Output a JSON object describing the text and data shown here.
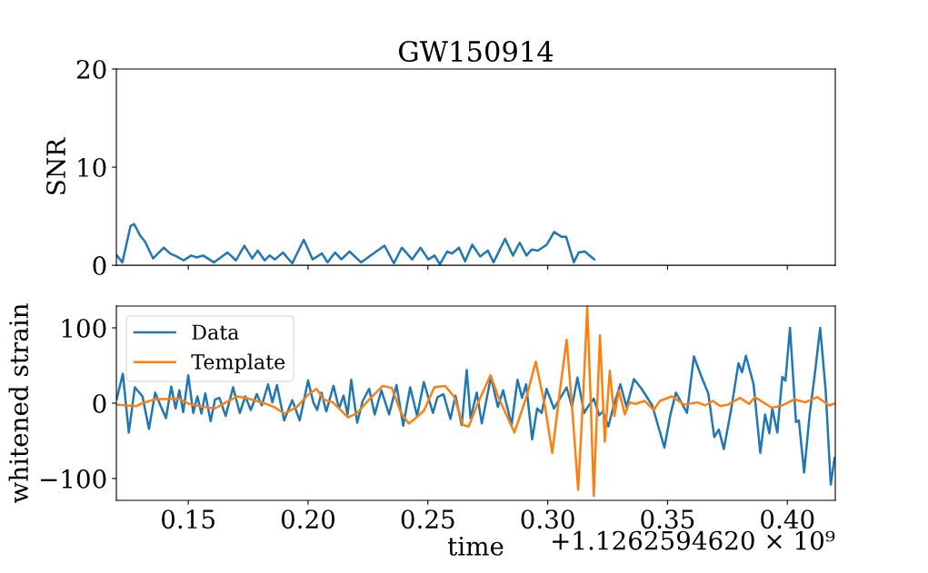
{
  "chart_data": [
    {
      "type": "line",
      "title": "GW150914",
      "ylabel": "SNR",
      "xlim": [
        0.12,
        0.42
      ],
      "xticks": [
        {
          "value": 0.15,
          "label": null
        },
        {
          "value": 0.2,
          "label": null
        },
        {
          "value": 0.25,
          "label": null
        },
        {
          "value": 0.3,
          "label": null
        },
        {
          "value": 0.35,
          "label": null
        },
        {
          "value": 0.4,
          "label": null
        }
      ],
      "ylim": [
        0,
        20
      ],
      "yticks": [
        0,
        10,
        20
      ],
      "tick_labels": "y",
      "grid": false,
      "legend": false,
      "series": [
        {
          "color": "#1f77b4",
          "x": [
            0.1202,
            0.1225,
            0.1259,
            0.1274,
            0.13,
            0.132,
            0.1353,
            0.1398,
            0.1424,
            0.1451,
            0.1481,
            0.1512,
            0.1535,
            0.1562,
            0.1607,
            0.1664,
            0.1699,
            0.1734,
            0.1767,
            0.179,
            0.1819,
            0.1839,
            0.1862,
            0.1895,
            0.1934,
            0.1982,
            0.2019,
            0.2058,
            0.2081,
            0.2113,
            0.2139,
            0.2173,
            0.2221,
            0.2267,
            0.2319,
            0.2358,
            0.2391,
            0.2434,
            0.2469,
            0.2502,
            0.2528,
            0.255,
            0.258,
            0.26,
            0.263,
            0.2655,
            0.2685,
            0.2718,
            0.275,
            0.2774,
            0.2822,
            0.2855,
            0.2883,
            0.2911,
            0.2933,
            0.2959,
            0.2996,
            0.3027,
            0.3057,
            0.3077,
            0.3109,
            0.3129,
            0.3155,
            0.3194
          ],
          "values": [
            1.0,
            0.3,
            4.0,
            4.2,
            3.0,
            2.4,
            0.7,
            1.8,
            1.2,
            0.9,
            0.5,
            1.0,
            0.8,
            1.0,
            0.3,
            1.3,
            0.5,
            2.0,
            0.7,
            1.5,
            0.5,
            1.0,
            0.6,
            1.3,
            0.2,
            2.6,
            0.6,
            1.2,
            0.3,
            1.3,
            0.6,
            1.4,
            0.3,
            1.1,
            2.0,
            0.2,
            1.8,
            0.6,
            1.8,
            0.6,
            1.0,
            0.1,
            1.4,
            1.2,
            1.8,
            0.4,
            2.1,
            0.9,
            1.5,
            0.3,
            2.7,
            1.0,
            2.3,
            1.0,
            1.6,
            1.5,
            2.1,
            3.4,
            2.9,
            2.9,
            0.3,
            1.3,
            1.4,
            0.6
          ]
        }
      ]
    },
    {
      "type": "line",
      "xlabel": "time",
      "ylabel": "whitened strain",
      "annotations": [
        "+1.1262594620 × 10⁹"
      ],
      "xlim": [
        0.12,
        0.42
      ],
      "xticks": [
        {
          "value": 0.15,
          "label": "0.15"
        },
        {
          "value": 0.2,
          "label": "0.20"
        },
        {
          "value": 0.25,
          "label": "0.25"
        },
        {
          "value": 0.3,
          "label": "0.30"
        },
        {
          "value": 0.35,
          "label": "0.35"
        },
        {
          "value": 0.4,
          "label": "0.40"
        }
      ],
      "ylim": [
        -129,
        129
      ],
      "yticks": [
        {
          "value": -100,
          "label": "−100"
        },
        0,
        100
      ],
      "grid": false,
      "legend": "top left",
      "series": [
        {
          "name": "Data",
          "color": "#1f77b4",
          "x": [
            0.1201,
            0.1227,
            0.1252,
            0.1277,
            0.1309,
            0.1336,
            0.1362,
            0.1384,
            0.1407,
            0.1429,
            0.1447,
            0.1463,
            0.1479,
            0.15,
            0.1521,
            0.1538,
            0.1555,
            0.1571,
            0.1593,
            0.1612,
            0.163,
            0.1656,
            0.1687,
            0.1715,
            0.1738,
            0.1761,
            0.1786,
            0.1807,
            0.1833,
            0.1851,
            0.187,
            0.19,
            0.1934,
            0.1965,
            0.2,
            0.2022,
            0.2038,
            0.2056,
            0.2076,
            0.2106,
            0.2129,
            0.2148,
            0.2165,
            0.218,
            0.2205,
            0.2228,
            0.2255,
            0.2278,
            0.2306,
            0.2338,
            0.2369,
            0.2397,
            0.2426,
            0.2455,
            0.2483,
            0.2521,
            0.254,
            0.2565,
            0.2594,
            0.2615,
            0.2641,
            0.2662,
            0.2678,
            0.2704,
            0.2725,
            0.2763,
            0.2792,
            0.2814,
            0.2849,
            0.2874,
            0.2893,
            0.291,
            0.2935,
            0.2956,
            0.2975,
            0.2995,
            0.3026,
            0.3079,
            0.3101,
            0.3124,
            0.3152,
            0.3171,
            0.3192,
            0.3215,
            0.323,
            0.3253,
            0.3272,
            0.3303,
            0.3329,
            0.336,
            0.3392,
            0.3436,
            0.3487,
            0.3512,
            0.3535,
            0.3581,
            0.361,
            0.3644,
            0.367,
            0.3695,
            0.3714,
            0.3735,
            0.3764,
            0.3796,
            0.3811,
            0.3827,
            0.3859,
            0.3887,
            0.3907,
            0.3925,
            0.3937,
            0.3958,
            0.3979,
            0.3992,
            0.4011,
            0.4036,
            0.4048,
            0.407,
            0.4093,
            0.4114,
            0.4137,
            0.416,
            0.4181,
            0.4197
          ],
          "values": [
            5,
            39,
            -39,
            21,
            9,
            -34,
            14,
            -3,
            -20,
            22,
            -7,
            17,
            -12,
            37,
            -13,
            9,
            -14,
            13,
            -24,
            5,
            7,
            -17,
            21,
            -13,
            9,
            -9,
            12,
            -3,
            25,
            1,
            24,
            -23,
            4,
            -23,
            30,
            1,
            -9,
            14,
            -11,
            23,
            -7,
            10,
            -15,
            31,
            -26,
            3,
            19,
            -15,
            17,
            -15,
            24,
            -30,
            21,
            -17,
            28,
            -13,
            8,
            12,
            -21,
            10,
            -29,
            44,
            -20,
            14,
            -27,
            35,
            -5,
            17,
            -29,
            31,
            7,
            25,
            -48,
            -7,
            -13,
            19,
            -7,
            21,
            -5,
            34,
            -13,
            -3,
            6,
            -16,
            -11,
            -31,
            -7,
            25,
            -5,
            32,
            19,
            -3,
            -59,
            -15,
            14,
            -13,
            62,
            33,
            13,
            -45,
            -35,
            -61,
            -11,
            53,
            41,
            63,
            25,
            -66,
            -15,
            -40,
            -7,
            -39,
            35,
            30,
            100,
            -25,
            -23,
            -92,
            -15,
            37,
            100,
            16,
            -108,
            -73
          ]
        },
        {
          "name": "Template",
          "color": "#ff7f0e",
          "x": [
            0.1201,
            0.1283,
            0.1309,
            0.1359,
            0.146,
            0.1504,
            0.1561,
            0.1612,
            0.1656,
            0.1706,
            0.1763,
            0.1826,
            0.1864,
            0.19,
            0.1953,
            0.2003,
            0.2035,
            0.2066,
            0.2104,
            0.2167,
            0.2205,
            0.2255,
            0.2312,
            0.235,
            0.2388,
            0.242,
            0.2445,
            0.2483,
            0.2527,
            0.2571,
            0.2609,
            0.2647,
            0.267,
            0.271,
            0.2761,
            0.2798,
            0.2861,
            0.2912,
            0.295,
            0.2988,
            0.3019,
            0.3051,
            0.3079,
            0.3104,
            0.3127,
            0.3149,
            0.3165,
            0.318,
            0.3192,
            0.3205,
            0.3218,
            0.3238,
            0.3259,
            0.3278,
            0.3297,
            0.3322,
            0.3341,
            0.3367,
            0.3404,
            0.3442,
            0.3468,
            0.3518,
            0.3569,
            0.3625,
            0.3657,
            0.3689,
            0.372,
            0.3752,
            0.3802,
            0.384,
            0.3865,
            0.3935,
            0.3979,
            0.4029,
            0.4074,
            0.4124,
            0.4175,
            0.42
          ],
          "values": [
            -2,
            -4,
            0,
            5,
            6,
            -1,
            -5,
            -7,
            1,
            9,
            5,
            -1,
            -6,
            -14,
            -5,
            12,
            19,
            5,
            1,
            -19,
            -13,
            5,
            23,
            20,
            -13,
            -27,
            -21,
            -10,
            21,
            23,
            9,
            -29,
            -31,
            1,
            37,
            5,
            -39,
            9,
            55,
            -3,
            -66,
            17,
            84,
            -15,
            -115,
            17,
            128,
            -3,
            -123,
            -15,
            90,
            -51,
            43,
            -17,
            17,
            -15,
            1,
            -1,
            3,
            -9,
            3,
            9,
            -2,
            1,
            -3,
            3,
            -4,
            -2,
            7,
            -1,
            8,
            -6,
            -3,
            5,
            1,
            8,
            -3,
            0
          ]
        }
      ]
    }
  ]
}
